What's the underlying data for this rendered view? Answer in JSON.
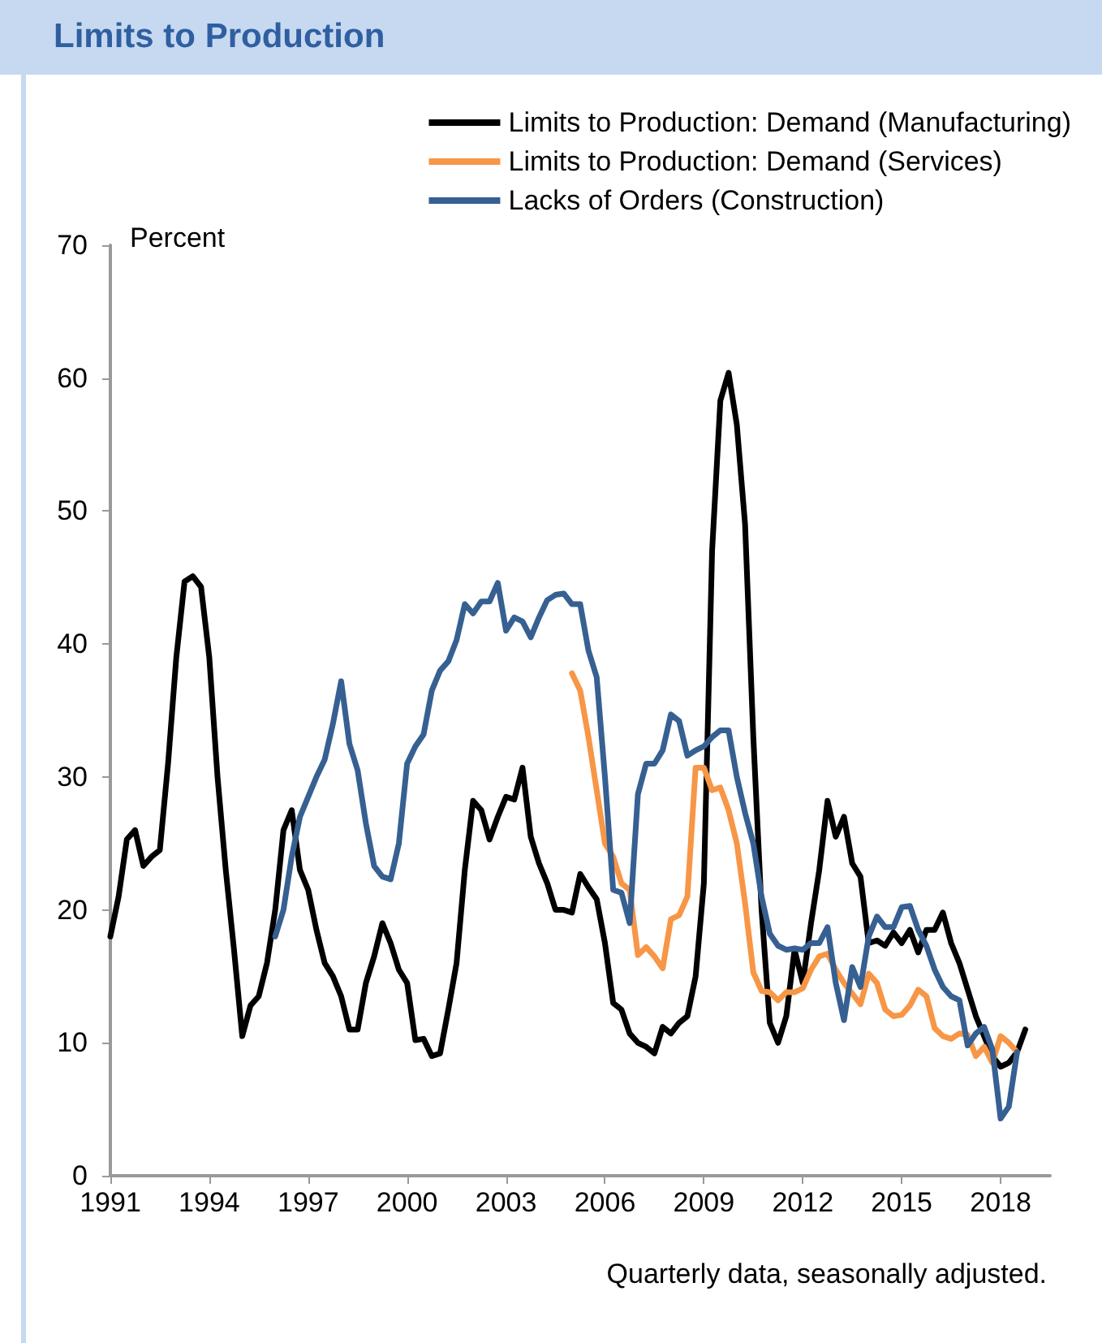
{
  "chart_data": {
    "type": "line",
    "title": "Limits to Production",
    "ylabel": "Percent",
    "annotations": [
      "Quarterly data, seasonally adjusted."
    ],
    "xlim": [
      1991,
      2019.5
    ],
    "xticks": [
      1991,
      1994,
      1997,
      2000,
      2003,
      2006,
      2009,
      2012,
      2015,
      2018
    ],
    "ylim": [
      0,
      70
    ],
    "yticks": [
      0,
      10,
      20,
      30,
      40,
      50,
      60,
      70
    ],
    "grid": false,
    "legend": "top right",
    "marker": "none",
    "line_style": "solid",
    "series": [
      {
        "name": "Limits to Production: Demand (Manufacturing)",
        "color": "#000000",
        "x": [
          1991,
          1991.25,
          1991.5,
          1991.75,
          1992,
          1992.25,
          1992.5,
          1992.75,
          1993,
          1993.25,
          1993.5,
          1993.75,
          1994,
          1994.25,
          1994.5,
          1994.75,
          1995,
          1995.25,
          1995.5,
          1995.75,
          1996,
          1996.25,
          1996.5,
          1996.75,
          1997,
          1997.25,
          1997.5,
          1997.75,
          1998,
          1998.25,
          1998.5,
          1998.75,
          1999,
          1999.25,
          1999.5,
          1999.75,
          2000,
          2000.25,
          2000.5,
          2000.75,
          2001,
          2001.25,
          2001.5,
          2001.75,
          2002,
          2002.25,
          2002.5,
          2002.75,
          2003,
          2003.25,
          2003.5,
          2003.75,
          2004,
          2004.25,
          2004.5,
          2004.75,
          2005,
          2005.25,
          2005.5,
          2005.75,
          2006,
          2006.25,
          2006.5,
          2006.75,
          2007,
          2007.25,
          2007.5,
          2007.75,
          2008,
          2008.25,
          2008.5,
          2008.75,
          2009,
          2009.25,
          2009.5,
          2009.75,
          2010,
          2010.25,
          2010.5,
          2010.75,
          2011,
          2011.25,
          2011.5,
          2011.75,
          2012,
          2012.25,
          2012.5,
          2012.75,
          2013,
          2013.25,
          2013.5,
          2013.75,
          2014,
          2014.25,
          2014.5,
          2014.75,
          2015,
          2015.25,
          2015.5,
          2015.75,
          2016,
          2016.25,
          2016.5,
          2016.75,
          2017,
          2017.25,
          2017.5,
          2017.75,
          2018,
          2018.25,
          2018.5,
          2018.75
        ],
        "values": [
          18,
          21,
          25.3,
          26,
          23.3,
          24,
          24.5,
          31,
          39,
          44.7,
          45.1,
          44.3,
          39,
          30,
          23,
          17,
          10.5,
          12.8,
          13.5,
          16,
          20,
          26,
          27.5,
          23,
          21.5,
          18.5,
          16,
          15,
          13.5,
          11,
          11,
          14.5,
          16.5,
          19,
          17.5,
          15.5,
          14.5,
          10.2,
          10.3,
          9,
          9.2,
          12.5,
          16,
          23,
          28.2,
          27.5,
          25.3,
          27,
          28.5,
          28.3,
          30.7,
          25.5,
          23.5,
          22,
          20,
          20,
          19.8,
          22.7,
          21.7,
          20.8,
          17.5,
          13,
          12.5,
          10.7,
          10,
          9.7,
          9.2,
          11.2,
          10.7,
          11.5,
          12,
          15,
          22,
          47,
          58.3,
          60.4,
          56.5,
          49,
          33,
          20,
          11.5,
          10,
          12,
          17,
          14.5,
          19,
          23,
          28.2,
          25.5,
          27,
          23.5,
          22.5,
          17.5,
          17.7,
          17.3,
          18.3,
          17.5,
          18.5,
          16.8,
          18.5,
          18.5,
          19.8,
          17.5,
          16,
          14,
          12,
          10.5,
          9,
          8.2,
          8.5,
          9.3,
          11
        ]
      },
      {
        "name": "Limits to Production: Demand (Services)",
        "color": "#f79646",
        "x": [
          2005,
          2005.25,
          2005.5,
          2005.75,
          2006,
          2006.25,
          2006.5,
          2006.75,
          2007,
          2007.25,
          2007.5,
          2007.75,
          2008,
          2008.25,
          2008.5,
          2008.75,
          2009,
          2009.25,
          2009.5,
          2009.75,
          2010,
          2010.25,
          2010.5,
          2010.75,
          2011,
          2011.25,
          2011.5,
          2011.75,
          2012,
          2012.25,
          2012.5,
          2012.75,
          2013,
          2013.25,
          2013.5,
          2013.75,
          2014,
          2014.25,
          2014.5,
          2014.75,
          2015,
          2015.25,
          2015.5,
          2015.75,
          2016,
          2016.25,
          2016.5,
          2016.75,
          2017,
          2017.25,
          2017.5,
          2017.75,
          2018,
          2018.25,
          2018.5
        ],
        "values": [
          37.8,
          36.5,
          33,
          29,
          25,
          24,
          22,
          21.5,
          16.6,
          17.2,
          16.5,
          15.6,
          19.3,
          19.6,
          21,
          30.7,
          30.7,
          29,
          29.2,
          27.5,
          25,
          20.5,
          15.3,
          13.9,
          13.8,
          13.2,
          13.8,
          13.8,
          14.1,
          15.5,
          16.5,
          16.7,
          15.5,
          14.5,
          13.7,
          12.9,
          15.2,
          14.5,
          12.5,
          12,
          12.1,
          12.8,
          14,
          13.5,
          11.1,
          10.5,
          10.3,
          10.7,
          10.6,
          9,
          9.7,
          8.5,
          10.5,
          10,
          9.3
        ]
      },
      {
        "name": "Lacks of Orders (Construction)",
        "color": "#376092",
        "x": [
          1996,
          1996.25,
          1996.5,
          1996.75,
          1997,
          1997.25,
          1997.5,
          1997.75,
          1998,
          1998.25,
          1998.5,
          1998.75,
          1999,
          1999.25,
          1999.5,
          1999.75,
          2000,
          2000.25,
          2000.5,
          2000.75,
          2001,
          2001.25,
          2001.5,
          2001.75,
          2002,
          2002.25,
          2002.5,
          2002.75,
          2003,
          2003.25,
          2003.5,
          2003.75,
          2004,
          2004.25,
          2004.5,
          2004.75,
          2005,
          2005.25,
          2005.5,
          2005.75,
          2006,
          2006.25,
          2006.5,
          2006.75,
          2007,
          2007.25,
          2007.5,
          2007.75,
          2008,
          2008.25,
          2008.5,
          2008.75,
          2009,
          2009.25,
          2009.5,
          2009.75,
          2010,
          2010.25,
          2010.5,
          2010.75,
          2011,
          2011.25,
          2011.5,
          2011.75,
          2012,
          2012.25,
          2012.5,
          2012.75,
          2013,
          2013.25,
          2013.5,
          2013.75,
          2014,
          2014.25,
          2014.5,
          2014.75,
          2015,
          2015.25,
          2015.5,
          2015.75,
          2016,
          2016.25,
          2016.5,
          2016.75,
          2017,
          2017.25,
          2017.5,
          2017.75,
          2018,
          2018.25,
          2018.5
        ],
        "values": [
          18,
          20,
          24,
          27,
          28.5,
          30,
          31.3,
          34,
          37.2,
          32.5,
          30.5,
          26.5,
          23.3,
          22.5,
          22.3,
          25,
          31,
          32.3,
          33.2,
          36.5,
          38,
          38.7,
          40.3,
          43,
          42.3,
          43.2,
          43.2,
          44.6,
          41,
          42,
          41.7,
          40.5,
          42,
          43.3,
          43.7,
          43.8,
          43,
          43,
          39.5,
          37.5,
          30,
          21.5,
          21.3,
          19,
          28.7,
          31,
          31,
          32,
          34.7,
          34.2,
          31.6,
          32,
          32.3,
          33,
          33.5,
          33.5,
          30,
          27.3,
          25,
          21,
          18.2,
          17.3,
          17,
          17.1,
          17,
          17.5,
          17.5,
          18.7,
          14.5,
          11.7,
          15.7,
          14.2,
          18,
          19.5,
          18.7,
          18.7,
          20.2,
          20.3,
          18.5,
          17.3,
          15.5,
          14.2,
          13.5,
          13.2,
          9.8,
          10.7,
          11.2,
          9.5,
          4.3,
          5.2,
          9.3
        ]
      }
    ]
  }
}
